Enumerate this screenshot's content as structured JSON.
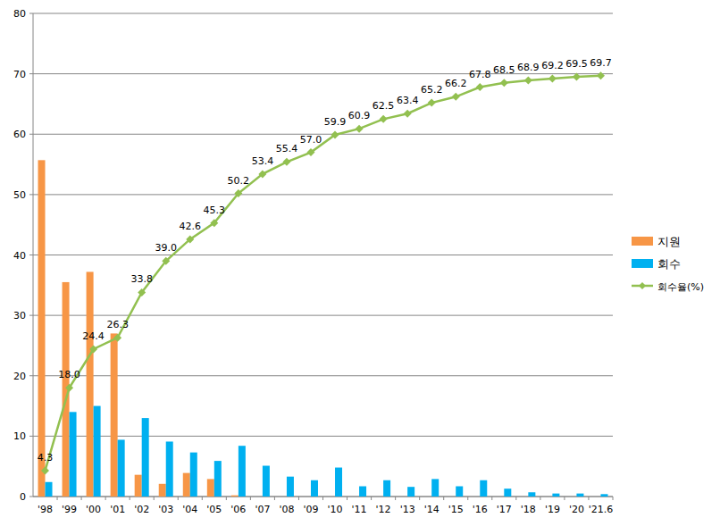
{
  "chart_data": {
    "type": "bar",
    "categories": [
      "'98",
      "'99",
      "'00",
      "'01",
      "'02",
      "'03",
      "'04",
      "'05",
      "'06",
      "'07",
      "'08",
      "'09",
      "'10",
      "'11",
      "'12",
      "'13",
      "'14",
      "'15",
      "'16",
      "'17",
      "'18",
      "'19",
      "'20",
      "'21.6"
    ],
    "series": [
      {
        "name": "지원",
        "type": "bar",
        "color": "#f79646",
        "values": [
          55.7,
          35.5,
          37.2,
          27.0,
          3.6,
          2.1,
          3.9,
          2.9,
          0.2,
          0,
          0,
          0,
          0,
          0,
          0,
          0,
          0,
          0,
          0,
          0,
          0,
          0,
          0,
          0
        ]
      },
      {
        "name": "회수",
        "type": "bar",
        "color": "#00b0f0",
        "values": [
          2.4,
          14.0,
          15.0,
          9.4,
          13.0,
          9.1,
          7.3,
          5.9,
          8.4,
          5.1,
          3.3,
          2.7,
          4.8,
          1.7,
          2.7,
          1.6,
          2.9,
          1.7,
          2.7,
          1.3,
          0.7,
          0.5,
          0.5,
          0.4
        ]
      },
      {
        "name": "회수율(%)",
        "type": "line",
        "color": "#92c050",
        "marker": "diamond",
        "data_labels": true,
        "values": [
          4.3,
          18.0,
          24.4,
          26.3,
          33.8,
          39.0,
          42.6,
          45.3,
          50.2,
          53.4,
          55.4,
          57.0,
          59.9,
          60.9,
          62.5,
          63.4,
          65.2,
          66.2,
          67.8,
          68.5,
          68.9,
          69.2,
          69.5,
          69.7
        ],
        "value_labels": [
          "4.3",
          "18.0",
          "24.4",
          "26.3",
          "33.8",
          "39.0",
          "42.6",
          "45.3",
          "50.2",
          "53.4",
          "55.4",
          "57.0",
          "59.9",
          "60.9",
          "62.5",
          "63.4",
          "65.2",
          "66.2",
          "67.8",
          "68.5",
          "68.9",
          "69.2",
          "69.5",
          "69.7"
        ]
      }
    ],
    "ylim": [
      0,
      80
    ],
    "yticks": [
      0,
      10,
      20,
      30,
      40,
      50,
      60,
      70,
      80
    ],
    "grid": true,
    "legend": "right"
  }
}
